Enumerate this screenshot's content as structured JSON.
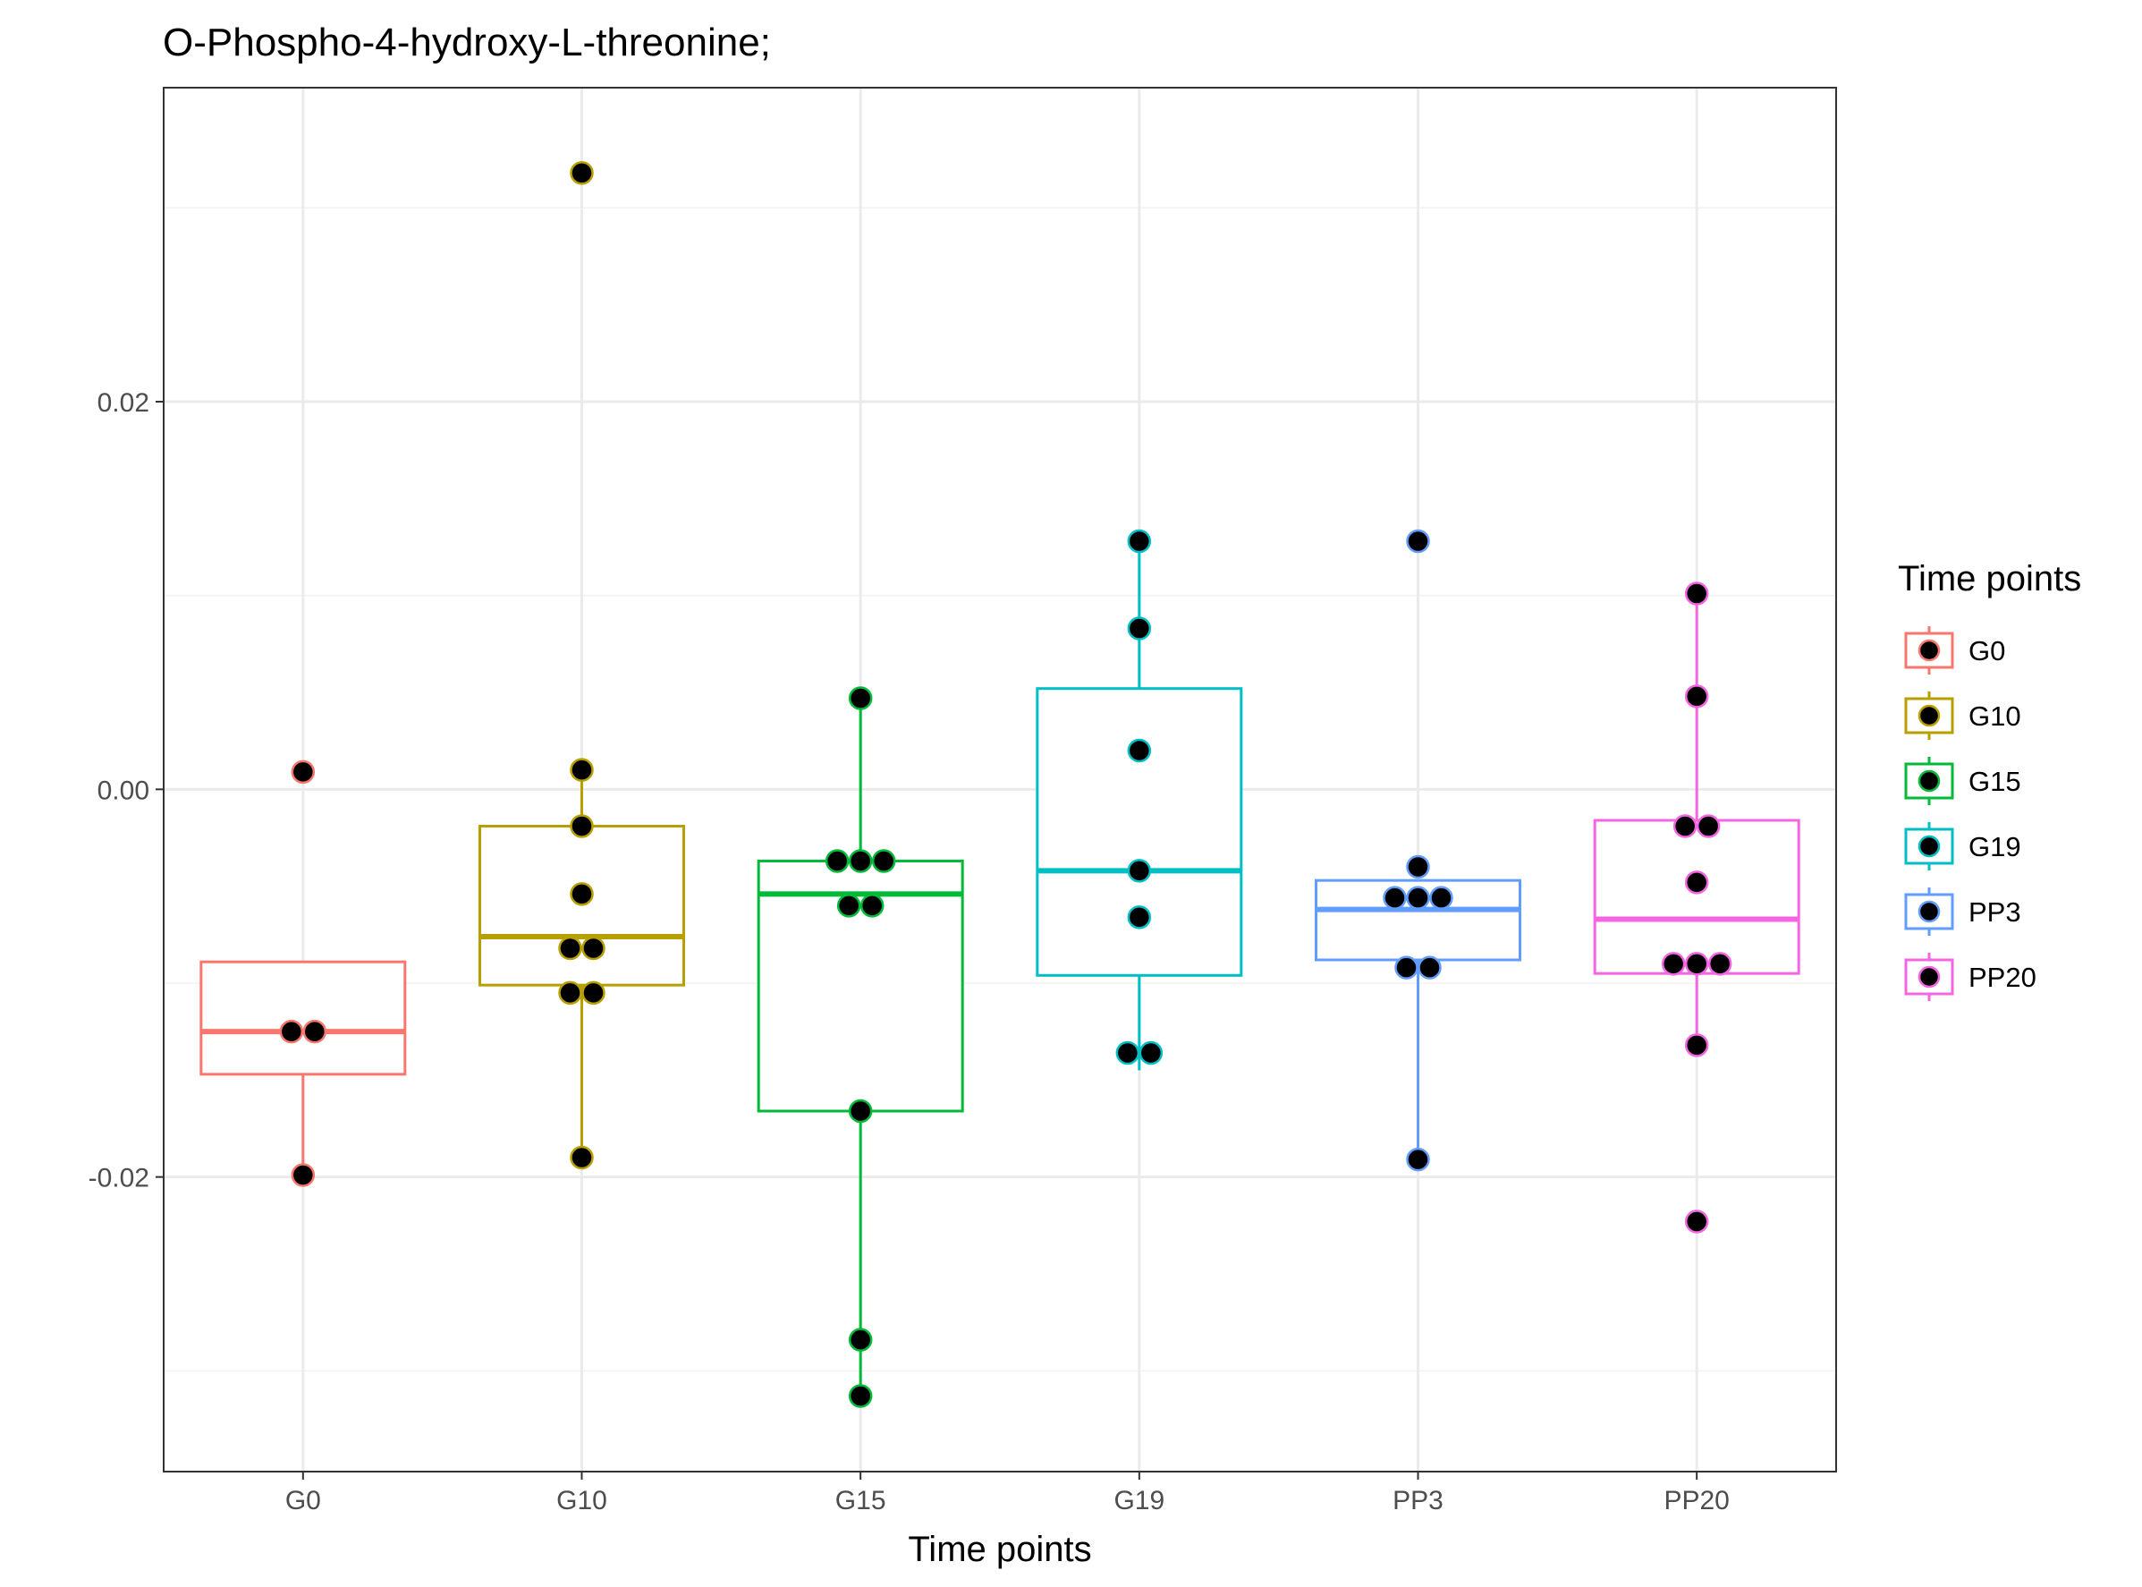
{
  "chart_data": {
    "type": "box",
    "title": "O-Phospho-4-hydroxy-L-threonine;",
    "xlabel": "Time points",
    "ylabel": "",
    "ylim": [
      -0.0352,
      0.0362
    ],
    "yticks": [
      -0.02,
      0.0,
      0.02
    ],
    "ytick_labels": [
      "-0.02",
      "0.00",
      "0.02"
    ],
    "categories": [
      "G0",
      "G10",
      "G15",
      "G19",
      "PP3",
      "PP20"
    ],
    "legend": {
      "title": "Time points",
      "position": "right",
      "entries": [
        "G0",
        "G10",
        "G15",
        "G19",
        "PP3",
        "PP20"
      ]
    },
    "colors": {
      "G0": "#F8766D",
      "G10": "#B79F00",
      "G15": "#00BA38",
      "G19": "#00BFC4",
      "PP3": "#619CFF",
      "PP20": "#F564E3"
    },
    "point_fill": "#000000",
    "grid": true,
    "series": [
      {
        "name": "G0",
        "box": {
          "whisker_low": -0.0199,
          "q1": -0.0147,
          "median": -0.0125,
          "q3": -0.0089,
          "whisker_high": -0.0089
        },
        "points": [
          {
            "y": 0.0009,
            "offset": 0
          },
          {
            "y": -0.0125,
            "offset": -1
          },
          {
            "y": -0.0125,
            "offset": 1
          },
          {
            "y": -0.0199,
            "offset": 0
          }
        ]
      },
      {
        "name": "G10",
        "box": {
          "whisker_low": -0.019,
          "q1": -0.0101,
          "median": -0.0076,
          "q3": -0.0019,
          "whisker_high": 0.001
        },
        "points": [
          {
            "y": 0.0318,
            "offset": 0
          },
          {
            "y": 0.001,
            "offset": 0
          },
          {
            "y": -0.0019,
            "offset": 0
          },
          {
            "y": -0.0054,
            "offset": 0
          },
          {
            "y": -0.0082,
            "offset": -1
          },
          {
            "y": -0.0082,
            "offset": 1
          },
          {
            "y": -0.0105,
            "offset": -1
          },
          {
            "y": -0.0105,
            "offset": 1
          },
          {
            "y": -0.019,
            "offset": 0
          }
        ]
      },
      {
        "name": "G15",
        "box": {
          "whisker_low": -0.0313,
          "q1": -0.0166,
          "median": -0.0054,
          "q3": -0.0037,
          "whisker_high": 0.0047
        },
        "points": [
          {
            "y": 0.0047,
            "offset": 0
          },
          {
            "y": -0.0037,
            "offset": -2
          },
          {
            "y": -0.0037,
            "offset": 0
          },
          {
            "y": -0.0037,
            "offset": 2
          },
          {
            "y": -0.006,
            "offset": -1
          },
          {
            "y": -0.006,
            "offset": 1
          },
          {
            "y": -0.0166,
            "offset": 0
          },
          {
            "y": -0.0284,
            "offset": 0
          },
          {
            "y": -0.0313,
            "offset": 0
          }
        ]
      },
      {
        "name": "G19",
        "box": {
          "whisker_low": -0.0145,
          "q1": -0.0096,
          "median": -0.0042,
          "q3": 0.0052,
          "whisker_high": 0.0128
        },
        "points": [
          {
            "y": 0.0128,
            "offset": 0
          },
          {
            "y": 0.0083,
            "offset": 0
          },
          {
            "y": 0.002,
            "offset": 0
          },
          {
            "y": -0.0042,
            "offset": 0
          },
          {
            "y": -0.0066,
            "offset": 0
          },
          {
            "y": -0.0136,
            "offset": -1
          },
          {
            "y": -0.0136,
            "offset": 1
          }
        ]
      },
      {
        "name": "PP3",
        "box": {
          "whisker_low": -0.019,
          "q1": -0.0088,
          "median": -0.0062,
          "q3": -0.0047,
          "whisker_high": -0.0047
        },
        "points": [
          {
            "y": 0.0128,
            "offset": 0
          },
          {
            "y": -0.004,
            "offset": 0
          },
          {
            "y": -0.0056,
            "offset": -2
          },
          {
            "y": -0.0056,
            "offset": 0
          },
          {
            "y": -0.0056,
            "offset": 2
          },
          {
            "y": -0.0092,
            "offset": -1
          },
          {
            "y": -0.0092,
            "offset": 1
          },
          {
            "y": -0.0191,
            "offset": 0
          }
        ]
      },
      {
        "name": "PP20",
        "box": {
          "whisker_low": -0.0132,
          "q1": -0.0095,
          "median": -0.0067,
          "q3": -0.0016,
          "whisker_high": 0.0101
        },
        "points": [
          {
            "y": 0.0101,
            "offset": 0
          },
          {
            "y": 0.0048,
            "offset": 0
          },
          {
            "y": -0.0019,
            "offset": -1
          },
          {
            "y": -0.0019,
            "offset": 1
          },
          {
            "y": -0.0048,
            "offset": 0
          },
          {
            "y": -0.009,
            "offset": -2
          },
          {
            "y": -0.009,
            "offset": 0
          },
          {
            "y": -0.009,
            "offset": 2
          },
          {
            "y": -0.0132,
            "offset": 0
          },
          {
            "y": -0.0223,
            "offset": 0
          }
        ]
      }
    ]
  }
}
